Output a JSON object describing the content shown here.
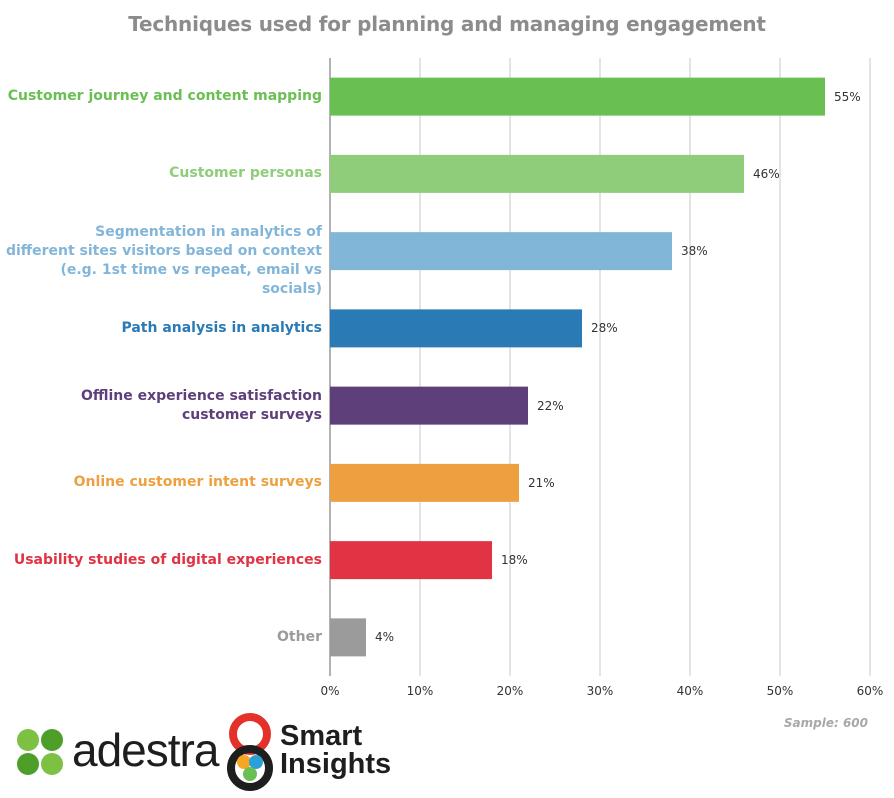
{
  "chart_data": {
    "type": "bar",
    "orientation": "horizontal",
    "title": "Techniques used for planning and managing engagement",
    "categories": [
      "Customer journey and content mapping",
      "Customer personas",
      "Segmentation in analytics of\ndifferent sites visitors based on context\n(e.g. 1st time vs repeat, email vs socials)",
      "Path analysis in analytics",
      "Offline experience satisfaction\ncustomer surveys",
      "Online customer intent surveys",
      "Usability studies of digital experiences",
      "Other"
    ],
    "values": [
      55,
      46,
      38,
      28,
      22,
      21,
      18,
      4
    ],
    "value_labels": [
      "55%",
      "46%",
      "38%",
      "28%",
      "22%",
      "21%",
      "18%",
      "4%"
    ],
    "colors": [
      "#6abf53",
      "#8fcd7a",
      "#82b6d9",
      "#2a7ab5",
      "#5e3f7a",
      "#eea040",
      "#e03344",
      "#9b9b9b"
    ],
    "xlim": [
      0,
      60
    ],
    "xticks": [
      0,
      10,
      20,
      30,
      40,
      50,
      60
    ],
    "xtick_labels": [
      "0%",
      "10%",
      "20%",
      "30%",
      "40%",
      "50%",
      "60%"
    ],
    "xlabel": "",
    "ylabel": "",
    "grid": true,
    "note": "Sample: 600"
  },
  "logos": {
    "adestra": "adestra",
    "smart_insights": "Smart\nInsights"
  }
}
